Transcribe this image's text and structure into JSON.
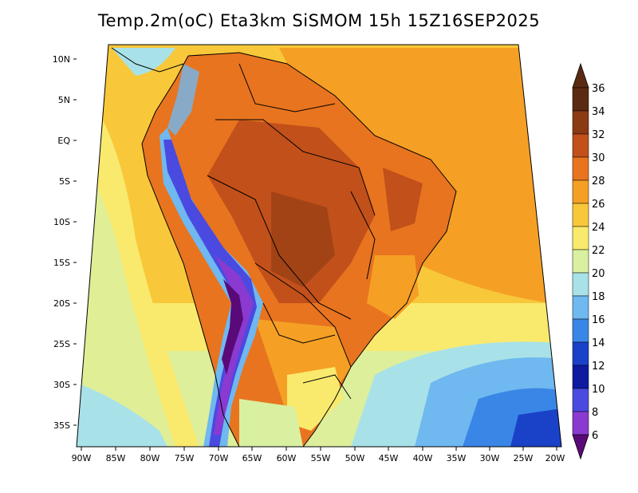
{
  "title": "Temp.2m(oC) Eta3km SiSMOM 15h 15Z16SEP2025",
  "axes": {
    "lat_labels": [
      "10N",
      "5N",
      "EQ",
      "5S",
      "10S",
      "15S",
      "20S",
      "25S",
      "30S",
      "35S"
    ],
    "lon_labels": [
      "90W",
      "85W",
      "80W",
      "75W",
      "70W",
      "65W",
      "60W",
      "55W",
      "50W",
      "45W",
      "40W",
      "35W",
      "30W",
      "25W",
      "20W"
    ]
  },
  "colorbar": {
    "labels": [
      "36",
      "34",
      "32",
      "30",
      "28",
      "26",
      "24",
      "22",
      "20",
      "18",
      "16",
      "14",
      "12",
      "10",
      "8",
      "6"
    ],
    "colors": [
      "#5a2a12",
      "#8c3a14",
      "#c2501a",
      "#e8741f",
      "#f5a025",
      "#f8c83a",
      "#f9ea6e",
      "#d9f0a0",
      "#a8e2e8",
      "#6fb8f0",
      "#3a86e6",
      "#1a42c8",
      "#0e1aa0",
      "#4a4ae0",
      "#8a3ad0",
      "#5a0a78"
    ]
  }
}
